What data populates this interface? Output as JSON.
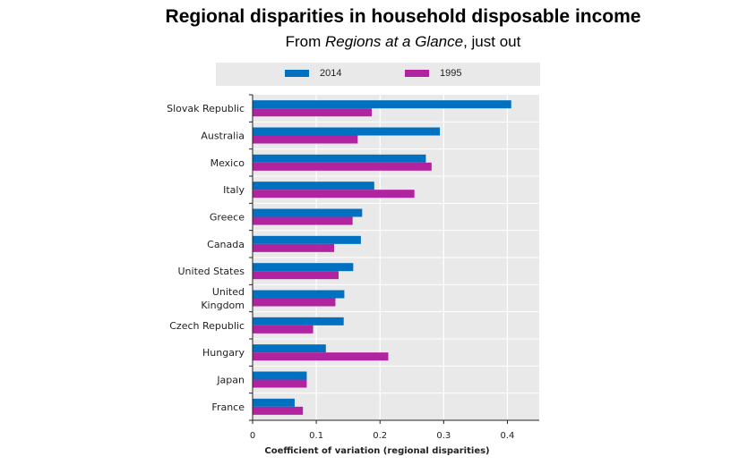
{
  "header": {
    "title": "Regional disparities in household disposable income",
    "subtitle_prefix": "From ",
    "subtitle_italic": "Regions at a Glance",
    "subtitle_suffix": ", just out"
  },
  "colors": {
    "series_2014": "#0070c0",
    "series_1995": "#b0249f",
    "plot_bg": "#e9e9e9",
    "grid": "#ffffff"
  },
  "chart_data": {
    "type": "bar",
    "orientation": "horizontal",
    "title": "Regional disparities in household disposable income",
    "xlabel": "Coefficient of variation (regional disparities)",
    "ylabel": "",
    "xlim": [
      0,
      0.45
    ],
    "xticks": [
      0,
      0.1,
      0.2,
      0.3,
      0.4
    ],
    "xtick_labels": [
      "0",
      "0.1",
      "0.2",
      "0.3",
      "0.4"
    ],
    "categories": [
      "Slovak Republic",
      "Australia",
      "Mexico",
      "Italy",
      "Greece",
      "Canada",
      "United States",
      "United Kingdom",
      "Czech Republic",
      "Hungary",
      "Japan",
      "France"
    ],
    "category_lines": [
      [
        "Slovak Republic"
      ],
      [
        "Australia"
      ],
      [
        "Mexico"
      ],
      [
        "Italy"
      ],
      [
        "Greece"
      ],
      [
        "Canada"
      ],
      [
        "United States"
      ],
      [
        "United",
        "Kingdom"
      ],
      [
        "Czech Republic"
      ],
      [
        "Hungary"
      ],
      [
        "Japan"
      ],
      [
        "France"
      ]
    ],
    "series": [
      {
        "name": "2014",
        "values": [
          0.406,
          0.294,
          0.272,
          0.191,
          0.172,
          0.17,
          0.158,
          0.144,
          0.143,
          0.115,
          0.085,
          0.066
        ]
      },
      {
        "name": "1995",
        "values": [
          0.187,
          0.165,
          0.281,
          0.254,
          0.157,
          0.128,
          0.135,
          0.13,
          0.095,
          0.213,
          0.085,
          0.079
        ]
      }
    ],
    "legend_position": "top"
  }
}
